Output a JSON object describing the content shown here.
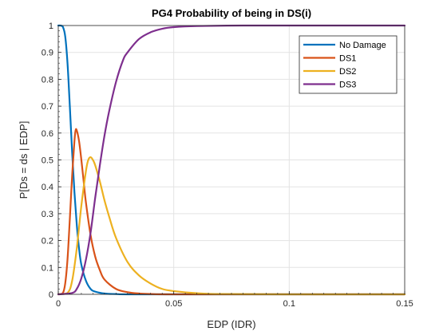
{
  "chart_data": {
    "type": "line",
    "title": "PG4 Probability of being in DS(i)",
    "xlabel": "EDP (IDR)",
    "ylabel": "P[Ds = ds | EDP]",
    "xlim": [
      0,
      0.15
    ],
    "ylim": [
      0,
      1
    ],
    "xticks": [
      0,
      0.05,
      0.1,
      0.15
    ],
    "xtick_labels": [
      "0",
      "0.05",
      "0.1",
      "0.15"
    ],
    "yticks": [
      0,
      0.1,
      0.2,
      0.3,
      0.4,
      0.5,
      0.6,
      0.7,
      0.8,
      0.9,
      1
    ],
    "ytick_labels": [
      "0",
      "0.1",
      "0.2",
      "0.3",
      "0.4",
      "0.5",
      "0.6",
      "0.7",
      "0.8",
      "0.9",
      "1"
    ],
    "grid": true,
    "legend_position": "top-right",
    "series": [
      {
        "name": "No Damage",
        "color": "#0072BD",
        "x": [
          0,
          0.001,
          0.002,
          0.003,
          0.004,
          0.005,
          0.006,
          0.007,
          0.008,
          0.009,
          0.01,
          0.012,
          0.014,
          0.016,
          0.02,
          0.025,
          0.03,
          0.05,
          0.1,
          0.15
        ],
        "y": [
          1.0,
          1.0,
          0.995,
          0.96,
          0.86,
          0.7,
          0.53,
          0.38,
          0.26,
          0.17,
          0.11,
          0.05,
          0.02,
          0.01,
          0.003,
          0.001,
          0,
          0,
          0,
          0
        ]
      },
      {
        "name": "DS1",
        "color": "#D95319",
        "x": [
          0,
          0.002,
          0.003,
          0.004,
          0.005,
          0.006,
          0.007,
          0.0075,
          0.008,
          0.009,
          0.01,
          0.011,
          0.012,
          0.014,
          0.016,
          0.018,
          0.02,
          0.025,
          0.03,
          0.035,
          0.04,
          0.05,
          0.1,
          0.15
        ],
        "y": [
          0,
          0.005,
          0.04,
          0.13,
          0.28,
          0.44,
          0.57,
          0.61,
          0.61,
          0.57,
          0.5,
          0.42,
          0.34,
          0.22,
          0.14,
          0.09,
          0.055,
          0.02,
          0.008,
          0.003,
          0.001,
          0,
          0,
          0
        ]
      },
      {
        "name": "DS2",
        "color": "#EDB120",
        "x": [
          0,
          0.004,
          0.006,
          0.008,
          0.01,
          0.012,
          0.013,
          0.014,
          0.015,
          0.016,
          0.018,
          0.02,
          0.022,
          0.025,
          0.03,
          0.035,
          0.04,
          0.045,
          0.05,
          0.06,
          0.07,
          0.1,
          0.15
        ],
        "y": [
          0,
          0.005,
          0.05,
          0.17,
          0.33,
          0.46,
          0.5,
          0.51,
          0.5,
          0.48,
          0.42,
          0.35,
          0.29,
          0.21,
          0.12,
          0.07,
          0.04,
          0.02,
          0.012,
          0.004,
          0.001,
          0,
          0
        ]
      },
      {
        "name": "DS3",
        "color": "#7E2F8E",
        "x": [
          0,
          0.006,
          0.008,
          0.01,
          0.012,
          0.014,
          0.016,
          0.018,
          0.02,
          0.022,
          0.025,
          0.028,
          0.03,
          0.035,
          0.04,
          0.045,
          0.05,
          0.06,
          0.08,
          0.1,
          0.15
        ],
        "y": [
          0,
          0.005,
          0.02,
          0.06,
          0.13,
          0.23,
          0.36,
          0.48,
          0.59,
          0.68,
          0.79,
          0.87,
          0.9,
          0.95,
          0.975,
          0.988,
          0.994,
          0.998,
          1.0,
          1.0,
          1.0
        ]
      }
    ]
  }
}
